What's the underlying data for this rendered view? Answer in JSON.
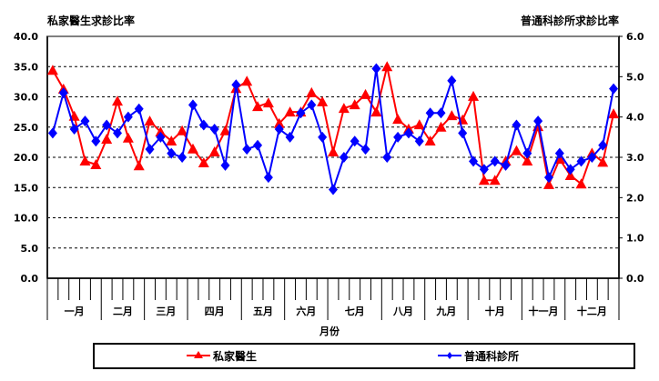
{
  "chart_data": {
    "type": "line",
    "left_title": "私家醫生求診比率",
    "right_title": "普通科診所求診比率",
    "xlabel": "月份",
    "left_ylim": [
      0,
      40
    ],
    "right_ylim": [
      0,
      6
    ],
    "left_ticks": [
      "0.0",
      "5.0",
      "10.0",
      "15.0",
      "20.0",
      "25.0",
      "30.0",
      "35.0",
      "40.0"
    ],
    "right_ticks": [
      "0.0",
      "1.0",
      "2.0",
      "3.0",
      "4.0",
      "5.0",
      "6.0"
    ],
    "grid": true,
    "legend_position": "bottom",
    "months": [
      {
        "label": "一月",
        "weeks": 5
      },
      {
        "label": "二月",
        "weeks": 4
      },
      {
        "label": "三月",
        "weeks": 4
      },
      {
        "label": "四月",
        "weeks": 5
      },
      {
        "label": "五月",
        "weeks": 4
      },
      {
        "label": "六月",
        "weeks": 4
      },
      {
        "label": "七月",
        "weeks": 5
      },
      {
        "label": "八月",
        "weeks": 4
      },
      {
        "label": "九月",
        "weeks": 4
      },
      {
        "label": "十月",
        "weeks": 5
      },
      {
        "label": "十一月",
        "weeks": 4
      },
      {
        "label": "十二月",
        "weeks": 5
      }
    ],
    "series": [
      {
        "name": "私家醫生",
        "axis": "left",
        "color": "#ff0000",
        "marker": "triangle",
        "values": [
          34.4,
          31.3,
          26.8,
          19.4,
          18.8,
          23.0,
          29.3,
          23.2,
          18.6,
          26.0,
          24.2,
          22.7,
          24.4,
          21.4,
          19.1,
          20.9,
          24.4,
          31.4,
          32.6,
          28.4,
          29.0,
          25.6,
          27.5,
          27.5,
          30.7,
          29.2,
          20.9,
          28.1,
          28.7,
          30.4,
          27.5,
          35.0,
          26.3,
          24.7,
          25.4,
          22.7,
          25.0,
          26.9,
          26.2,
          30.1,
          16.2,
          16.2,
          19.4,
          21.1,
          19.4,
          25.1,
          15.5,
          19.7,
          17.0,
          15.6,
          20.7,
          19.2,
          27.2
        ]
      },
      {
        "name": "普通科診所",
        "axis": "right",
        "color": "#0000ff",
        "marker": "diamond",
        "values": [
          3.6,
          4.6,
          3.7,
          3.9,
          3.4,
          3.8,
          3.6,
          4.0,
          4.2,
          3.2,
          3.5,
          3.1,
          3.0,
          4.3,
          3.8,
          3.7,
          2.8,
          4.8,
          3.2,
          3.3,
          2.5,
          3.7,
          3.5,
          4.1,
          4.3,
          3.5,
          2.2,
          3.0,
          3.4,
          3.2,
          5.2,
          3.0,
          3.5,
          3.6,
          3.4,
          4.1,
          4.1,
          4.9,
          3.6,
          2.9,
          2.7,
          2.9,
          2.8,
          3.8,
          3.1,
          3.9,
          2.5,
          3.1,
          2.7,
          2.9,
          3.0,
          3.3,
          4.7
        ]
      }
    ]
  }
}
